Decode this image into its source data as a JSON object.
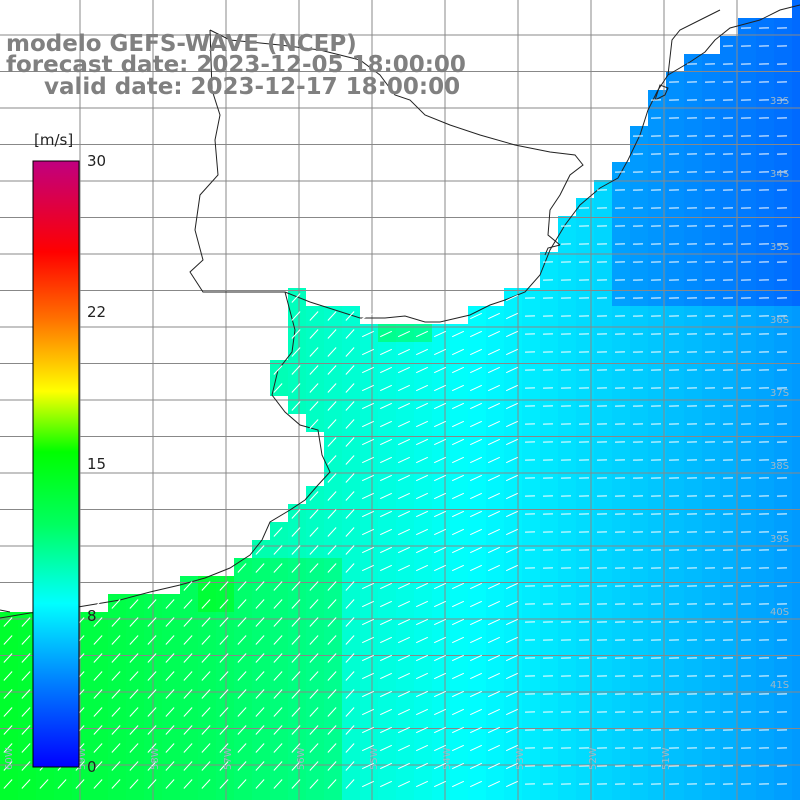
{
  "header": {
    "model_line": "modelo GEFS-WAVE (NCEP)",
    "forecast_line": "forecast date: 2023-12-05 18:00:00",
    "valid_line": "valid date: 2023-12-17 18:00:00"
  },
  "colorbar": {
    "unit": "[m/s]",
    "ticks": [
      "30",
      "22",
      "15",
      "8",
      "0"
    ],
    "stops": [
      "#0000ff",
      "#00a0ff",
      "#00ffff",
      "#00ff80",
      "#00ff00",
      "#ffff00",
      "#ff8000",
      "#ff0000",
      "#ff0080",
      "#c00080"
    ]
  },
  "map": {
    "lat_labels": [
      "33S",
      "34S",
      "35S",
      "36S",
      "37S",
      "38S",
      "39S",
      "40S",
      "41S"
    ],
    "lon_labels": [
      "60W",
      "59W",
      "58W",
      "57W",
      "56W",
      "55W",
      "54W",
      "53W",
      "52W",
      "51W"
    ],
    "field": "wind speed",
    "wind_direction": "from the northeast"
  }
}
